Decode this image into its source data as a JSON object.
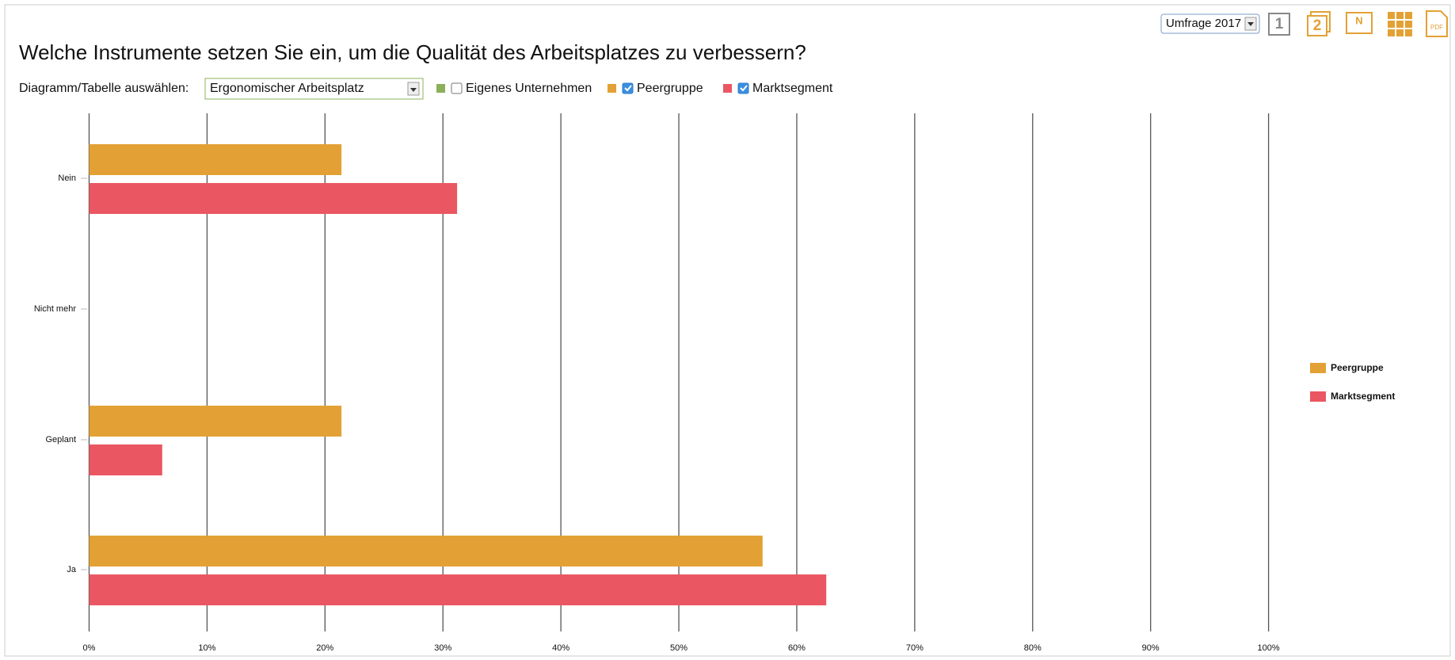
{
  "ui": {
    "survey_select": "Umfrage 2017",
    "icons": [
      "1",
      "2",
      "N",
      "PDF"
    ],
    "select_label": "Diagramm/Tabelle auswählen:",
    "chart_select": "Ergonomischer Arbeitsplatz",
    "toggles": [
      {
        "label": "Eigenes Unternehmen",
        "color": "#8cb05a",
        "checked": false
      },
      {
        "label": "Peergruppe",
        "color": "#e3a135",
        "checked": true
      },
      {
        "label": "Marktsegment",
        "color": "#ea5762",
        "checked": true
      }
    ]
  },
  "chart_data": {
    "type": "hbar",
    "title": "Welche Instrumente setzen Sie ein, um die Qualität des Arbeitsplatzes zu verbessern?",
    "categories": [
      "Nein",
      "Nicht mehr",
      "Geplant",
      "Ja"
    ],
    "series": [
      {
        "name": "Peergruppe",
        "color": "#e3a135",
        "values": [
          21.4,
          0,
          21.4,
          57.1
        ]
      },
      {
        "name": "Marktsegment",
        "color": "#ea5762",
        "values": [
          31.2,
          0,
          6.2,
          62.5
        ]
      }
    ],
    "xlim": [
      0,
      100
    ],
    "xticks": [
      {
        "value": 0,
        "label": "0%"
      },
      {
        "value": 10,
        "label": "10%"
      },
      {
        "value": 20,
        "label": "20%"
      },
      {
        "value": 30,
        "label": "30%"
      },
      {
        "value": 40,
        "label": "40%"
      },
      {
        "value": 50,
        "label": "50%"
      },
      {
        "value": 60,
        "label": "60%"
      },
      {
        "value": 70,
        "label": "70%"
      },
      {
        "value": 80,
        "label": "80%"
      },
      {
        "value": 90,
        "label": "90%"
      },
      {
        "value": 100,
        "label": "100%"
      }
    ],
    "grid": true,
    "legend": "right"
  }
}
